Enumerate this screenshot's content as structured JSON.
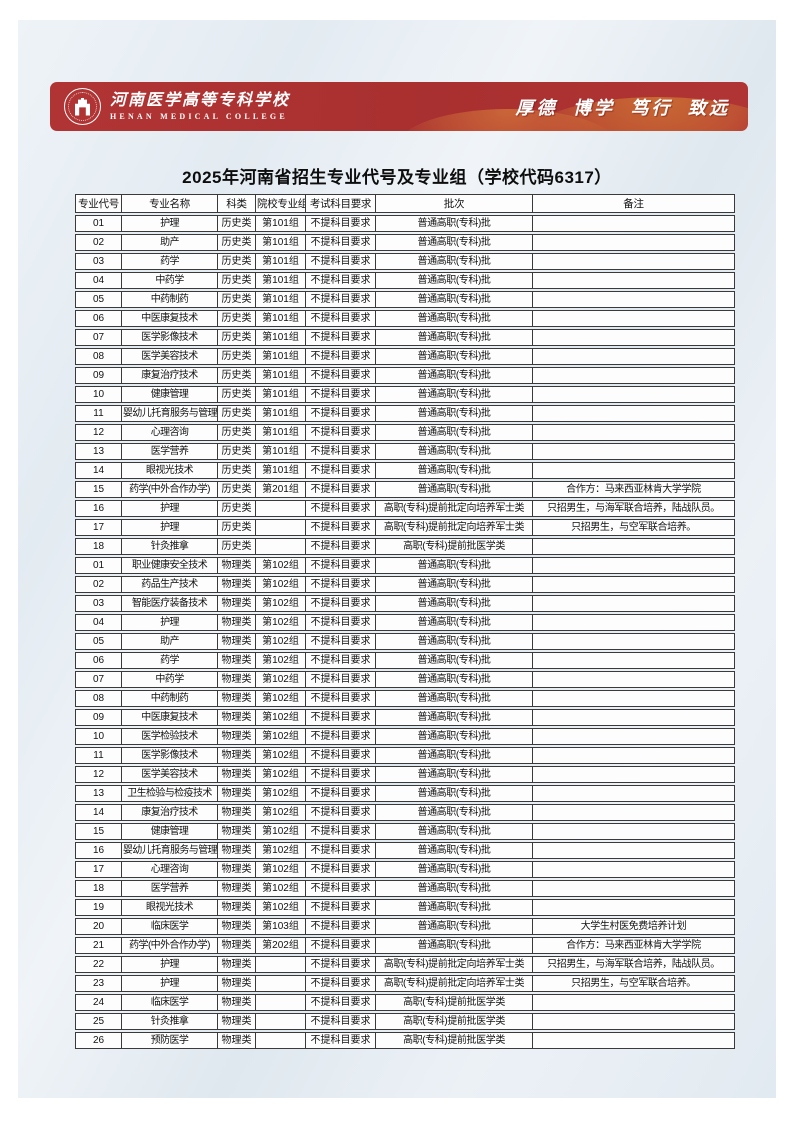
{
  "banner": {
    "school_name_cn": "河南医学高等专科学校",
    "school_name_en": "HENAN MEDICAL COLLEGE",
    "motto": "厚德 博学 笃行 致远"
  },
  "page": {
    "title": "2025年河南省招生专业代号及专业组（学校代码6317）"
  },
  "colors": {
    "banner_red": "#b13434",
    "accent_orange": "#c96a33"
  },
  "table": {
    "headers": [
      "专业代号",
      "专业名称",
      "科类",
      "院校专业组",
      "考试科目要求",
      "批次",
      "备注"
    ],
    "rows": [
      [
        "01",
        "护理",
        "历史类",
        "第101组",
        "不提科目要求",
        "普通高职(专科)批",
        ""
      ],
      [
        "02",
        "助产",
        "历史类",
        "第101组",
        "不提科目要求",
        "普通高职(专科)批",
        ""
      ],
      [
        "03",
        "药学",
        "历史类",
        "第101组",
        "不提科目要求",
        "普通高职(专科)批",
        ""
      ],
      [
        "04",
        "中药学",
        "历史类",
        "第101组",
        "不提科目要求",
        "普通高职(专科)批",
        ""
      ],
      [
        "05",
        "中药制药",
        "历史类",
        "第101组",
        "不提科目要求",
        "普通高职(专科)批",
        ""
      ],
      [
        "06",
        "中医康复技术",
        "历史类",
        "第101组",
        "不提科目要求",
        "普通高职(专科)批",
        ""
      ],
      [
        "07",
        "医学影像技术",
        "历史类",
        "第101组",
        "不提科目要求",
        "普通高职(专科)批",
        ""
      ],
      [
        "08",
        "医学美容技术",
        "历史类",
        "第101组",
        "不提科目要求",
        "普通高职(专科)批",
        ""
      ],
      [
        "09",
        "康复治疗技术",
        "历史类",
        "第101组",
        "不提科目要求",
        "普通高职(专科)批",
        ""
      ],
      [
        "10",
        "健康管理",
        "历史类",
        "第101组",
        "不提科目要求",
        "普通高职(专科)批",
        ""
      ],
      [
        "11",
        "婴幼儿托育服务与管理",
        "历史类",
        "第101组",
        "不提科目要求",
        "普通高职(专科)批",
        ""
      ],
      [
        "12",
        "心理咨询",
        "历史类",
        "第101组",
        "不提科目要求",
        "普通高职(专科)批",
        ""
      ],
      [
        "13",
        "医学营养",
        "历史类",
        "第101组",
        "不提科目要求",
        "普通高职(专科)批",
        ""
      ],
      [
        "14",
        "眼视光技术",
        "历史类",
        "第101组",
        "不提科目要求",
        "普通高职(专科)批",
        ""
      ],
      [
        "15",
        "药学(中外合作办学)",
        "历史类",
        "第201组",
        "不提科目要求",
        "普通高职(专科)批",
        "合作方：马来西亚林肯大学学院"
      ],
      [
        "16",
        "护理",
        "历史类",
        "",
        "不提科目要求",
        "高职(专科)提前批定向培养军士类",
        "只招男生，与海军联合培养，陆战队员。"
      ],
      [
        "17",
        "护理",
        "历史类",
        "",
        "不提科目要求",
        "高职(专科)提前批定向培养军士类",
        "只招男生，与空军联合培养。"
      ],
      [
        "18",
        "针灸推拿",
        "历史类",
        "",
        "不提科目要求",
        "高职(专科)提前批医学类",
        ""
      ],
      [
        "01",
        "职业健康安全技术",
        "物理类",
        "第102组",
        "不提科目要求",
        "普通高职(专科)批",
        ""
      ],
      [
        "02",
        "药品生产技术",
        "物理类",
        "第102组",
        "不提科目要求",
        "普通高职(专科)批",
        ""
      ],
      [
        "03",
        "智能医疗装备技术",
        "物理类",
        "第102组",
        "不提科目要求",
        "普通高职(专科)批",
        ""
      ],
      [
        "04",
        "护理",
        "物理类",
        "第102组",
        "不提科目要求",
        "普通高职(专科)批",
        ""
      ],
      [
        "05",
        "助产",
        "物理类",
        "第102组",
        "不提科目要求",
        "普通高职(专科)批",
        ""
      ],
      [
        "06",
        "药学",
        "物理类",
        "第102组",
        "不提科目要求",
        "普通高职(专科)批",
        ""
      ],
      [
        "07",
        "中药学",
        "物理类",
        "第102组",
        "不提科目要求",
        "普通高职(专科)批",
        ""
      ],
      [
        "08",
        "中药制药",
        "物理类",
        "第102组",
        "不提科目要求",
        "普通高职(专科)批",
        ""
      ],
      [
        "09",
        "中医康复技术",
        "物理类",
        "第102组",
        "不提科目要求",
        "普通高职(专科)批",
        ""
      ],
      [
        "10",
        "医学检验技术",
        "物理类",
        "第102组",
        "不提科目要求",
        "普通高职(专科)批",
        ""
      ],
      [
        "11",
        "医学影像技术",
        "物理类",
        "第102组",
        "不提科目要求",
        "普通高职(专科)批",
        ""
      ],
      [
        "12",
        "医学美容技术",
        "物理类",
        "第102组",
        "不提科目要求",
        "普通高职(专科)批",
        ""
      ],
      [
        "13",
        "卫生检验与检疫技术",
        "物理类",
        "第102组",
        "不提科目要求",
        "普通高职(专科)批",
        ""
      ],
      [
        "14",
        "康复治疗技术",
        "物理类",
        "第102组",
        "不提科目要求",
        "普通高职(专科)批",
        ""
      ],
      [
        "15",
        "健康管理",
        "物理类",
        "第102组",
        "不提科目要求",
        "普通高职(专科)批",
        ""
      ],
      [
        "16",
        "婴幼儿托育服务与管理",
        "物理类",
        "第102组",
        "不提科目要求",
        "普通高职(专科)批",
        ""
      ],
      [
        "17",
        "心理咨询",
        "物理类",
        "第102组",
        "不提科目要求",
        "普通高职(专科)批",
        ""
      ],
      [
        "18",
        "医学营养",
        "物理类",
        "第102组",
        "不提科目要求",
        "普通高职(专科)批",
        ""
      ],
      [
        "19",
        "眼视光技术",
        "物理类",
        "第102组",
        "不提科目要求",
        "普通高职(专科)批",
        ""
      ],
      [
        "20",
        "临床医学",
        "物理类",
        "第103组",
        "不提科目要求",
        "普通高职(专科)批",
        "大学生村医免费培养计划"
      ],
      [
        "21",
        "药学(中外合作办学)",
        "物理类",
        "第202组",
        "不提科目要求",
        "普通高职(专科)批",
        "合作方：马来西亚林肯大学学院"
      ],
      [
        "22",
        "护理",
        "物理类",
        "",
        "不提科目要求",
        "高职(专科)提前批定向培养军士类",
        "只招男生，与海军联合培养，陆战队员。"
      ],
      [
        "23",
        "护理",
        "物理类",
        "",
        "不提科目要求",
        "高职(专科)提前批定向培养军士类",
        "只招男生，与空军联合培养。"
      ],
      [
        "24",
        "临床医学",
        "物理类",
        "",
        "不提科目要求",
        "高职(专科)提前批医学类",
        ""
      ],
      [
        "25",
        "针灸推拿",
        "物理类",
        "",
        "不提科目要求",
        "高职(专科)提前批医学类",
        ""
      ],
      [
        "26",
        "预防医学",
        "物理类",
        "",
        "不提科目要求",
        "高职(专科)提前批医学类",
        ""
      ]
    ]
  }
}
